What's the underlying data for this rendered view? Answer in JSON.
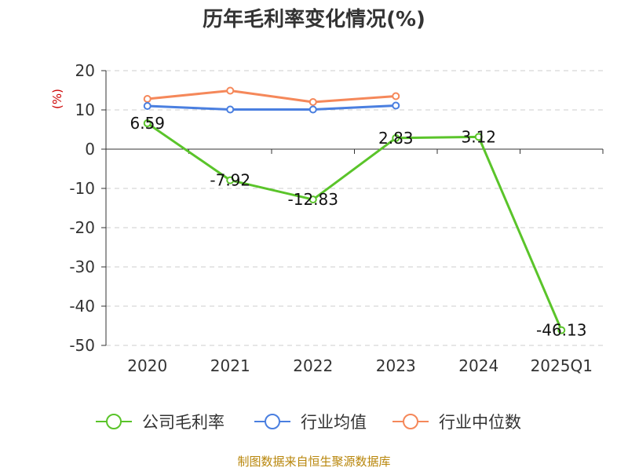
{
  "chart_data": {
    "type": "line",
    "title": "历年毛利率变化情况(%)",
    "unit_label": "(%)",
    "categories": [
      "2020",
      "2021",
      "2022",
      "2023",
      "2024",
      "2025Q1"
    ],
    "y_ticks": [
      20,
      10,
      0,
      -10,
      -20,
      -30,
      -40,
      -50
    ],
    "ylim": [
      -50,
      20
    ],
    "grid": true,
    "legend_position": "bottom",
    "series": [
      {
        "name": "公司毛利率",
        "color": "#5ac42a",
        "values": [
          6.59,
          -7.92,
          -12.83,
          2.83,
          3.12,
          -46.13
        ],
        "labels": [
          "6.59",
          "-7.92",
          "-12.83",
          "2.83",
          "3.12",
          "-46.13"
        ]
      },
      {
        "name": "行业均值",
        "color": "#4a7fe0",
        "values": [
          11.0,
          10.1,
          10.1,
          11.1,
          null,
          null
        ]
      },
      {
        "name": "行业中位数",
        "color": "#f5885a",
        "values": [
          12.8,
          14.9,
          12.0,
          13.5,
          null,
          null
        ]
      }
    ],
    "source": "制图数据来自恒生聚源数据库"
  }
}
